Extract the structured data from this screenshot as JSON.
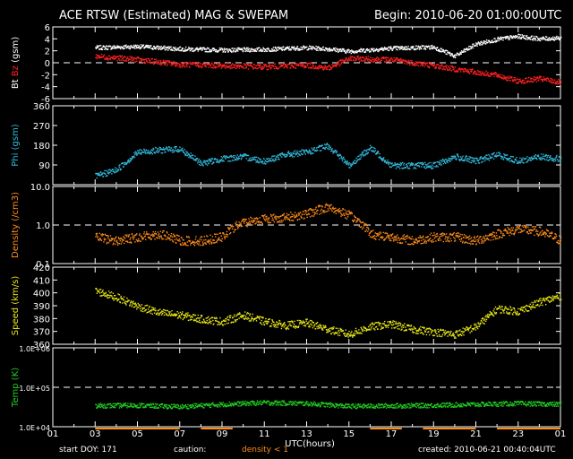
{
  "header": {
    "title": "ACE RTSW (Estimated) MAG & SWEPAM",
    "begin": "Begin: 2010-06-20 01:00:00UTC"
  },
  "footer": {
    "start_doy": "start DOY: 171",
    "caution": "caution:",
    "density_note": "density < 1",
    "created": "created: 2010-06-21 00:40:04UTC"
  },
  "colors": {
    "background": "#000000",
    "axes": "#ffffff",
    "bt": "#ffffff",
    "bz": "#ff2020",
    "phi": "#33bbdd",
    "density": "#ff8c1a",
    "speed": "#e6e619",
    "temp": "#22cc22",
    "caution_bar": "#ff8c1a"
  },
  "chart_data": {
    "type": "scatter",
    "xlabel": "UTC(hours)",
    "x_ticks": [
      "01",
      "03",
      "05",
      "07",
      "09",
      "11",
      "13",
      "15",
      "17",
      "19",
      "21",
      "23",
      "01"
    ],
    "x_range_hours": [
      0,
      24
    ],
    "panels": [
      {
        "id": "mag",
        "ylabel": [
          {
            "text": "Bt",
            "color": "#ffffff"
          },
          {
            "text": " ",
            "color": "#ffffff"
          },
          {
            "text": "Bz",
            "color": "#ff2020"
          },
          {
            "text": " (gsm)",
            "color": "#ffffff"
          }
        ],
        "scale": "linear",
        "ylim": [
          -6,
          6
        ],
        "yticks": [
          "-6",
          "-4",
          "-2",
          "0",
          "2",
          "4",
          "6"
        ],
        "ytick_values": [
          -6,
          -4,
          -2,
          0,
          2,
          4,
          6
        ],
        "ref_line": 0,
        "series": [
          {
            "name": "Bt",
            "color": "#ffffff",
            "x": [
              2.0,
              4.0,
              6.0,
              8.0,
              10.0,
              12.0,
              13.0,
              14.0,
              16.0,
              18.0,
              19.0,
              20.0,
              21.0,
              22.0,
              23.0,
              24.0
            ],
            "y": [
              2.6,
              2.8,
              2.4,
              2.2,
              2.3,
              2.6,
              2.4,
              2.0,
              2.5,
              2.7,
              1.2,
              3.2,
              4.0,
              4.5,
              4.1,
              4.2
            ],
            "spread": 0.35
          },
          {
            "name": "Bz",
            "color": "#ff2020",
            "x": [
              2.0,
              4.0,
              6.0,
              8.0,
              10.0,
              12.0,
              13.0,
              14.0,
              16.0,
              18.0,
              20.0,
              21.0,
              22.0,
              23.0,
              24.0
            ],
            "y": [
              1.2,
              0.6,
              -0.2,
              -0.4,
              -0.6,
              -0.3,
              -0.8,
              0.8,
              0.6,
              -0.4,
              -1.5,
              -2.0,
              -3.0,
              -2.6,
              -3.2
            ],
            "spread": 0.45
          }
        ]
      },
      {
        "id": "phi",
        "ylabel": [
          {
            "text": "Phi (gsm)",
            "color": "#33bbdd"
          }
        ],
        "scale": "linear",
        "ylim": [
          0,
          360
        ],
        "yticks": [
          "90",
          "180",
          "270",
          "360"
        ],
        "ytick_values": [
          90,
          180,
          270,
          360
        ],
        "series": [
          {
            "name": "Phi",
            "color": "#33bbdd",
            "x": [
              2.0,
              3.0,
              4.0,
              5.0,
              6.0,
              7.0,
              8.0,
              9.0,
              10.0,
              11.0,
              12.0,
              13.0,
              14.0,
              15.0,
              16.0,
              18.0,
              19.0,
              20.0,
              21.0,
              22.0,
              23.0,
              24.0
            ],
            "y": [
              40,
              70,
              150,
              160,
              165,
              100,
              120,
              130,
              110,
              140,
              150,
              180,
              90,
              170,
              90,
              90,
              130,
              110,
              140,
              110,
              130,
              120
            ],
            "spread": 14
          }
        ]
      },
      {
        "id": "density",
        "ylabel": [
          {
            "text": "Density (/cm3)",
            "color": "#ff8c1a"
          }
        ],
        "scale": "log",
        "ylim": [
          0.1,
          10.0
        ],
        "yticks": [
          "0.1",
          "1.0",
          "10.0"
        ],
        "ytick_values": [
          0.1,
          1.0,
          10.0
        ],
        "ref_line": 1.0,
        "series": [
          {
            "name": "Density",
            "color": "#ff8c1a",
            "x": [
              2.0,
              3.0,
              4.0,
              5.0,
              6.0,
              7.0,
              8.0,
              9.0,
              10.0,
              11.0,
              12.0,
              13.0,
              14.0,
              15.0,
              16.0,
              17.0,
              18.0,
              19.0,
              20.0,
              21.0,
              22.0,
              23.0,
              24.0
            ],
            "y": [
              0.5,
              0.4,
              0.5,
              0.6,
              0.4,
              0.4,
              0.5,
              1.2,
              1.5,
              1.6,
              2.0,
              3.0,
              1.8,
              0.6,
              0.5,
              0.4,
              0.5,
              0.5,
              0.4,
              0.6,
              0.8,
              0.7,
              0.4
            ],
            "spread": 0.12
          }
        ]
      },
      {
        "id": "speed",
        "ylabel": [
          {
            "text": "Speed (km/s)",
            "color": "#e6e619"
          }
        ],
        "scale": "linear",
        "ylim": [
          360,
          420
        ],
        "yticks": [
          "360",
          "370",
          "380",
          "390",
          "400",
          "410",
          "420"
        ],
        "ytick_values": [
          360,
          370,
          380,
          390,
          400,
          410,
          420
        ],
        "series": [
          {
            "name": "Speed",
            "color": "#e6e619",
            "x": [
              2.0,
              3.0,
              4.0,
              5.0,
              6.0,
              7.0,
              8.0,
              9.0,
              10.0,
              11.0,
              12.0,
              13.0,
              14.0,
              15.0,
              16.0,
              17.0,
              18.0,
              19.0,
              20.0,
              21.0,
              22.0,
              23.0,
              24.0
            ],
            "y": [
              402,
              397,
              390,
              385,
              383,
              380,
              378,
              383,
              378,
              375,
              377,
              372,
              368,
              374,
              376,
              372,
              370,
              368,
              374,
              388,
              386,
              393,
              398
            ],
            "spread": 3.0
          }
        ]
      },
      {
        "id": "temp",
        "ylabel": [
          {
            "text": "Temp (K)",
            "color": "#22cc22"
          }
        ],
        "scale": "log",
        "ylim": [
          10000,
          1000000
        ],
        "yticks": [
          "1.0E+04",
          "1.0E+05",
          "1.0E+06"
        ],
        "ytick_values": [
          10000,
          100000,
          1000000
        ],
        "ref_line": 100000,
        "series": [
          {
            "name": "Temp",
            "color": "#22cc22",
            "x": [
              2.0,
              4.0,
              6.0,
              8.0,
              10.0,
              12.0,
              14.0,
              16.0,
              18.0,
              20.0,
              22.0,
              24.0
            ],
            "y": [
              35000,
              36000,
              33000,
              38000,
              42000,
              40000,
              34000,
              35000,
              36000,
              38000,
              40000,
              38000
            ],
            "spread": 0.06
          }
        ]
      }
    ],
    "caution_intervals_hours": [
      [
        2.0,
        6.0
      ],
      [
        7.0,
        8.5
      ],
      [
        15.0,
        16.5
      ],
      [
        17.5,
        20.0
      ],
      [
        21.0,
        24.0
      ]
    ]
  }
}
